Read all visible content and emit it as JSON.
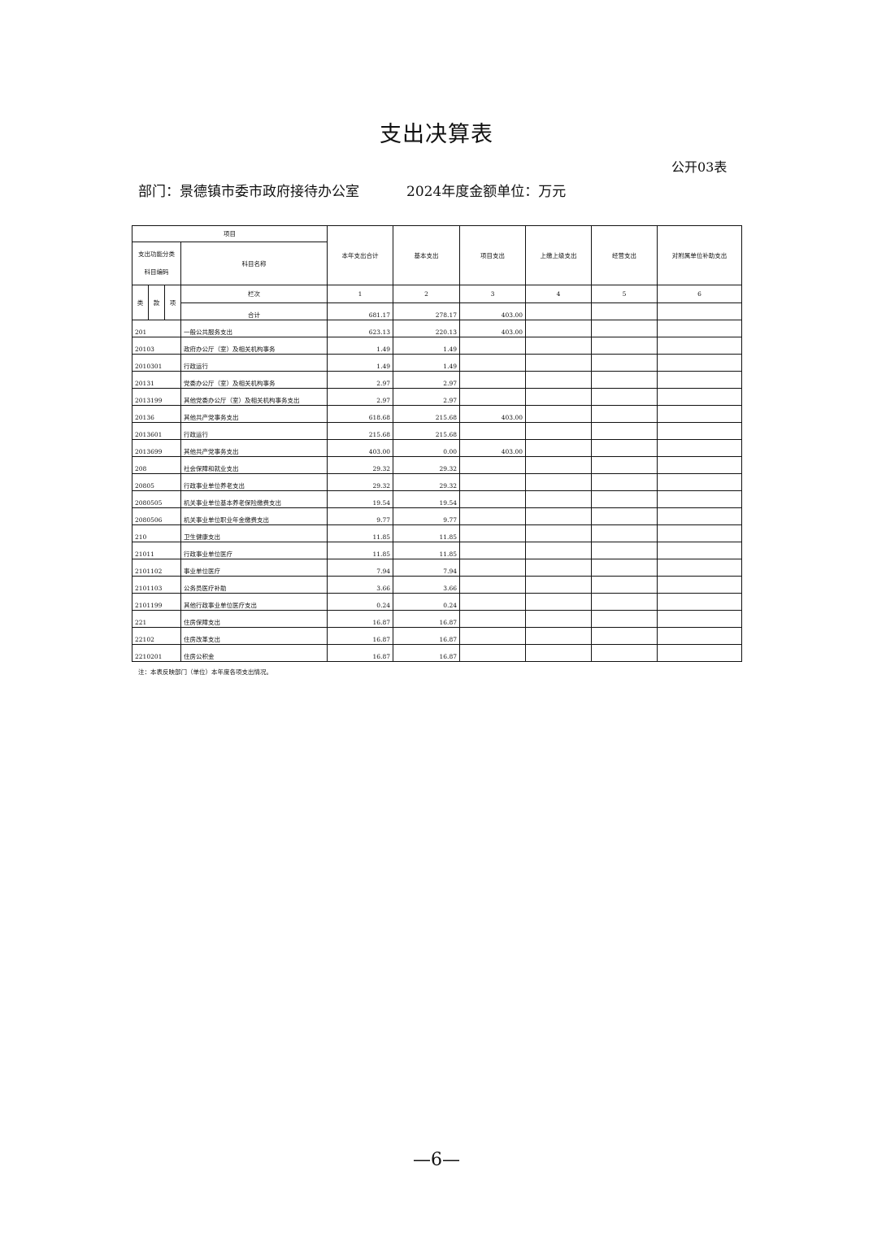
{
  "title": "支出决算表",
  "table_no": "公开03表",
  "department": "部门：景德镇市委市政府接待办公室",
  "unit": "2024年度金额单位：万元",
  "headers": {
    "project": "项目",
    "code": "支出功能分类科目编码",
    "name": "科目名称",
    "lei": "类",
    "kuan": "款",
    "xiang": "项",
    "col_index": "栏次",
    "total_label": "合计",
    "columns": [
      "本年支出合计",
      "基本支出",
      "项目支出",
      "上缴上级支出",
      "经营支出",
      "对附属单位补助支出"
    ],
    "column_numbers": [
      "1",
      "2",
      "3",
      "4",
      "5",
      "6"
    ]
  },
  "total": [
    "681.17",
    "278.17",
    "403.00",
    "",
    "",
    ""
  ],
  "rows": [
    {
      "code": "201",
      "name": "一般公共服务支出",
      "values": [
        "623.13",
        "220.13",
        "403.00",
        "",
        "",
        ""
      ]
    },
    {
      "code": "20103",
      "name": "政府办公厅（室）及相关机构事务",
      "values": [
        "1.49",
        "1.49",
        "",
        "",
        "",
        ""
      ]
    },
    {
      "code": "2010301",
      "name": "行政运行",
      "values": [
        "1.49",
        "1.49",
        "",
        "",
        "",
        ""
      ]
    },
    {
      "code": "20131",
      "name": "党委办公厅（室）及相关机构事务",
      "values": [
        "2.97",
        "2.97",
        "",
        "",
        "",
        ""
      ]
    },
    {
      "code": "2013199",
      "name": "其他党委办公厅（室）及相关机构事务支出",
      "values": [
        "2.97",
        "2.97",
        "",
        "",
        "",
        ""
      ]
    },
    {
      "code": "20136",
      "name": "其他共产党事务支出",
      "values": [
        "618.68",
        "215.68",
        "403.00",
        "",
        "",
        ""
      ]
    },
    {
      "code": "2013601",
      "name": "行政运行",
      "values": [
        "215.68",
        "215.68",
        "",
        "",
        "",
        ""
      ]
    },
    {
      "code": "2013699",
      "name": "其他共产党事务支出",
      "values": [
        "403.00",
        "0.00",
        "403.00",
        "",
        "",
        ""
      ]
    },
    {
      "code": "208",
      "name": "社会保障和就业支出",
      "values": [
        "29.32",
        "29.32",
        "",
        "",
        "",
        ""
      ]
    },
    {
      "code": "20805",
      "name": "行政事业单位养老支出",
      "values": [
        "29.32",
        "29.32",
        "",
        "",
        "",
        ""
      ]
    },
    {
      "code": "2080505",
      "name": "机关事业单位基本养老保险缴费支出",
      "values": [
        "19.54",
        "19.54",
        "",
        "",
        "",
        ""
      ]
    },
    {
      "code": "2080506",
      "name": "机关事业单位职业年金缴费支出",
      "values": [
        "9.77",
        "9.77",
        "",
        "",
        "",
        ""
      ]
    },
    {
      "code": "210",
      "name": "卫生健康支出",
      "values": [
        "11.85",
        "11.85",
        "",
        "",
        "",
        ""
      ]
    },
    {
      "code": "21011",
      "name": "行政事业单位医疗",
      "values": [
        "11.85",
        "11.85",
        "",
        "",
        "",
        ""
      ]
    },
    {
      "code": "2101102",
      "name": "事业单位医疗",
      "values": [
        "7.94",
        "7.94",
        "",
        "",
        "",
        ""
      ]
    },
    {
      "code": "2101103",
      "name": "公务员医疗补助",
      "values": [
        "3.66",
        "3.66",
        "",
        "",
        "",
        ""
      ]
    },
    {
      "code": "2101199",
      "name": "其他行政事业单位医疗支出",
      "values": [
        "0.24",
        "0.24",
        "",
        "",
        "",
        ""
      ]
    },
    {
      "code": "221",
      "name": "住房保障支出",
      "values": [
        "16.87",
        "16.87",
        "",
        "",
        "",
        ""
      ]
    },
    {
      "code": "22102",
      "name": "住房改革支出",
      "values": [
        "16.87",
        "16.87",
        "",
        "",
        "",
        ""
      ]
    },
    {
      "code": "2210201",
      "name": "住房公积金",
      "values": [
        "16.87",
        "16.87",
        "",
        "",
        "",
        ""
      ]
    }
  ],
  "note": "注：本表反映部门（单位）本年度各项支出情况。",
  "page_number": "—6—"
}
